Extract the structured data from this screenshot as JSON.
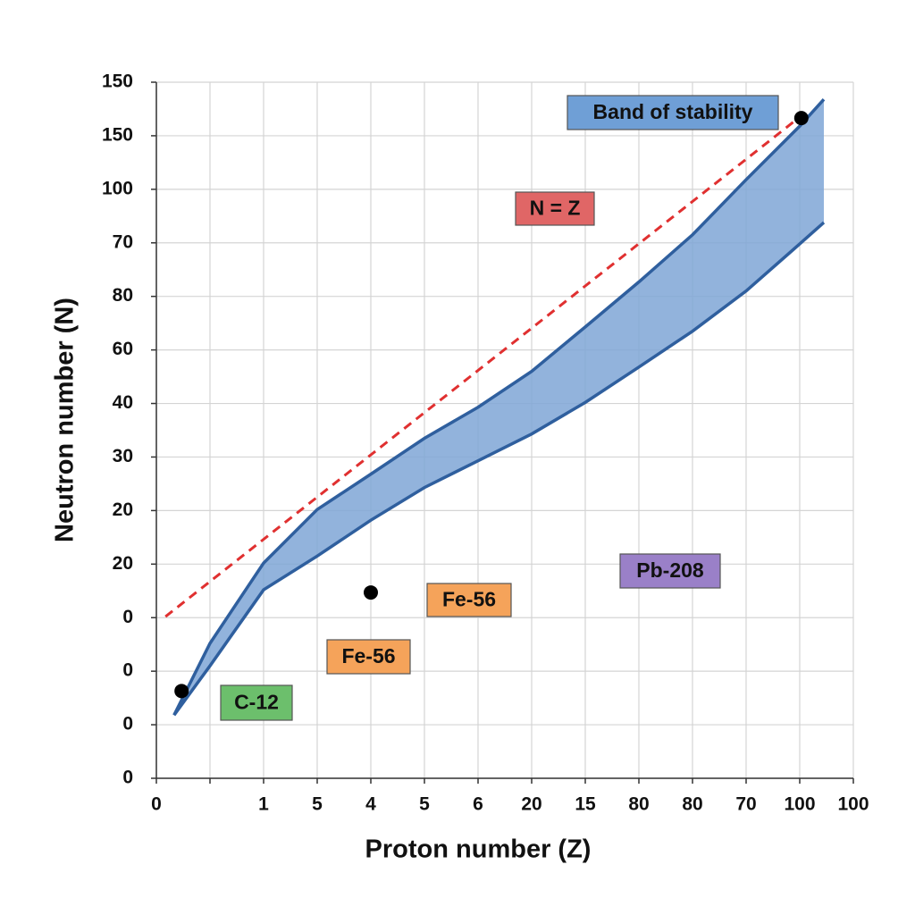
{
  "chart_data": {
    "type": "line",
    "xlabel": "Proton number (Z)",
    "ylabel": "Neutron number (N)",
    "xlim": [
      0,
      13
    ],
    "ylim": [
      0,
      13
    ],
    "xticks": [
      {
        "value": 0,
        "label": "0"
      },
      {
        "value": 1,
        "label": null
      },
      {
        "value": 2,
        "label": "1"
      },
      {
        "value": 3,
        "label": "5"
      },
      {
        "value": 4,
        "label": "4"
      },
      {
        "value": 5,
        "label": "5"
      },
      {
        "value": 6,
        "label": "6"
      },
      {
        "value": 7,
        "label": "20"
      },
      {
        "value": 8,
        "label": "15"
      },
      {
        "value": 9,
        "label": "80"
      },
      {
        "value": 10,
        "label": "80"
      },
      {
        "value": 11,
        "label": "70"
      },
      {
        "value": 12,
        "label": "100"
      },
      {
        "value": 13,
        "label": "100"
      }
    ],
    "yticks": [
      {
        "value": 0,
        "label": "0"
      },
      {
        "value": 1,
        "label": "0"
      },
      {
        "value": 2,
        "label": "0"
      },
      {
        "value": 3,
        "label": "0"
      },
      {
        "value": 4,
        "label": "20"
      },
      {
        "value": 5,
        "label": "20"
      },
      {
        "value": 6,
        "label": "30"
      },
      {
        "value": 7,
        "label": "40"
      },
      {
        "value": 8,
        "label": "60"
      },
      {
        "value": 9,
        "label": "80"
      },
      {
        "value": 10,
        "label": "70"
      },
      {
        "value": 11,
        "label": "100"
      },
      {
        "value": 12,
        "label": "150"
      },
      {
        "value": 13,
        "label": "150"
      }
    ],
    "grid": true,
    "x": [
      0.33,
      1,
      2,
      3,
      4,
      5,
      6,
      7,
      8,
      9,
      10,
      11,
      12,
      12.45
    ],
    "series": [
      {
        "color": "#2f5f9e",
        "values": [
          1.18,
          2.52,
          4.02,
          5.02,
          5.68,
          6.35,
          6.93,
          7.6,
          8.43,
          9.27,
          10.15,
          11.18,
          12.18,
          12.68
        ]
      },
      {
        "color": "#2f5f9e",
        "values": [
          1.18,
          2.1,
          3.52,
          4.15,
          4.82,
          5.43,
          5.93,
          6.43,
          7.02,
          7.68,
          8.35,
          9.1,
          9.98,
          10.38
        ]
      }
    ],
    "band_color": "#7fa6d6",
    "reference_line": {
      "x": [
        0.17,
        12
      ],
      "values": [
        3.02,
        12.35
      ],
      "color": "#e03030"
    },
    "points": {
      "x": [
        0.47,
        4,
        12.03
      ],
      "values": [
        1.63,
        3.47,
        12.33
      ],
      "color": "#000000"
    },
    "annotations": [
      {
        "text": "Band of stability",
        "color": "#6f9fd6"
      },
      {
        "text": "N = Z",
        "color": "#e06666"
      },
      {
        "text": "Pb-208",
        "color": "#9a80c8"
      },
      {
        "text": "Fe-56",
        "color": "#f5a35a"
      },
      {
        "text": "Fe-56",
        "color": "#f5a35a"
      },
      {
        "text": "C-12",
        "color": "#6cbf6c"
      }
    ]
  }
}
